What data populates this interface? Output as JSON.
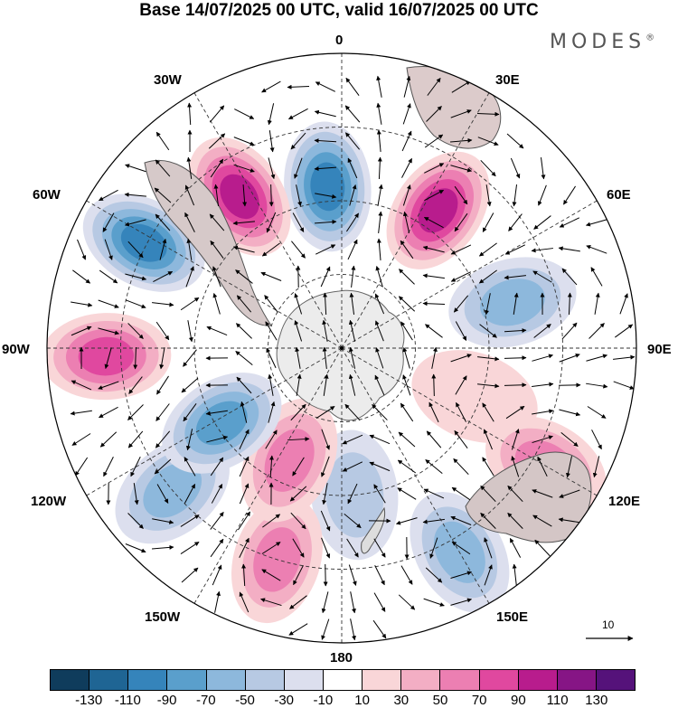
{
  "title": "Base 14/07/2025 00 UTC, valid 16/07/2025 00 UTC",
  "brand": "MODES",
  "brand_mark": "®",
  "longitude_labels": [
    "0",
    "30E",
    "60E",
    "90E",
    "120E",
    "150E",
    "180",
    "150W",
    "120W",
    "90W",
    "60W",
    "30W"
  ],
  "reference_vector": "10",
  "colorbar": {
    "colors": [
      "#0f3c5c",
      "#1f6594",
      "#3584bb",
      "#5a9fcc",
      "#8db8dc",
      "#b7c9e3",
      "#dcdfee",
      "#ffffff",
      "#f9d6d8",
      "#f3aec4",
      "#ec7fb2",
      "#e0489f",
      "#b81c8d",
      "#861585",
      "#55127a"
    ],
    "ticks": [
      "-130",
      "-110",
      "-90",
      "-70",
      "-50",
      "-30",
      "-10",
      "10",
      "30",
      "50",
      "70",
      "90",
      "110",
      "130"
    ]
  },
  "anomaly_centers": [
    {
      "lon": 355,
      "lat_pos": 0.55,
      "value": -100
    },
    {
      "lon": 35,
      "lat_pos": 0.57,
      "value": 100
    },
    {
      "lon": 75,
      "lat_pos": 0.6,
      "value": -50
    },
    {
      "lon": 110,
      "lat_pos": 0.48,
      "value": 20
    },
    {
      "lon": 120,
      "lat_pos": 0.8,
      "value": 60
    },
    {
      "lon": 150,
      "lat_pos": 0.8,
      "value": -60
    },
    {
      "lon": 175,
      "lat_pos": 0.5,
      "value": -40
    },
    {
      "lon": 197,
      "lat_pos": 0.75,
      "value": 50
    },
    {
      "lon": 205,
      "lat_pos": 0.42,
      "value": 60
    },
    {
      "lon": 230,
      "lat_pos": 0.75,
      "value": -60
    },
    {
      "lon": 238,
      "lat_pos": 0.48,
      "value": -70
    },
    {
      "lon": 268,
      "lat_pos": 0.8,
      "value": 80
    },
    {
      "lon": 298,
      "lat_pos": 0.76,
      "value": -100
    },
    {
      "lon": 326,
      "lat_pos": 0.62,
      "value": 90
    }
  ]
}
